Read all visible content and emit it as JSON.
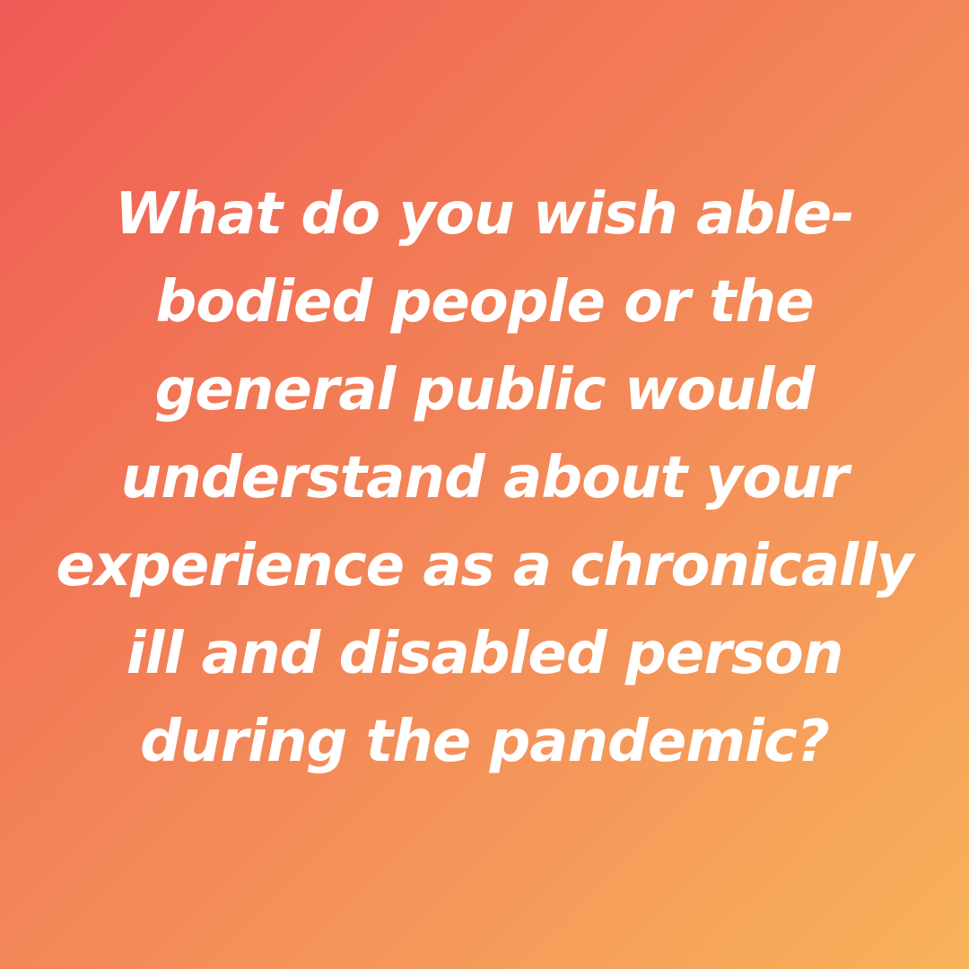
{
  "post": {
    "background": {
      "gradient_start": "#ef5a56",
      "gradient_end": "#f8b25a"
    },
    "text_color": "#ffffff",
    "question_lines": [
      "What do you wish able-",
      "bodied people or the",
      "general public would",
      "understand about your",
      "experience as a chronically",
      "ill and disabled person",
      "during the pandemic?"
    ]
  }
}
